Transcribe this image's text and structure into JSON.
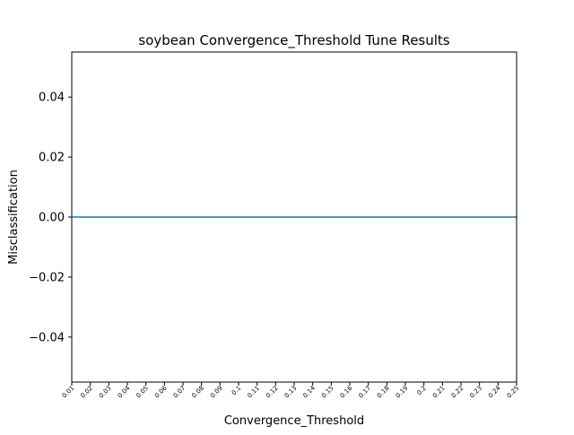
{
  "chart_data": {
    "type": "line",
    "title": "soybean Convergence_Threshold Tune Results",
    "xlabel": "Convergence_Threshold",
    "ylabel": "Misclassification",
    "x": [
      0.01,
      0.02,
      0.03,
      0.04,
      0.05,
      0.06,
      0.07,
      0.08,
      0.09,
      0.1,
      0.11,
      0.12,
      0.13,
      0.14,
      0.15,
      0.16,
      0.17,
      0.18,
      0.19,
      0.2,
      0.21,
      0.22,
      0.23,
      0.24,
      0.25
    ],
    "x_tick_labels": [
      "0.01",
      "0.02",
      "0.03",
      "0.04",
      "0.05",
      "0.06",
      "0.07",
      "0.08",
      "0.09",
      "0.1",
      "0.11",
      "0.12",
      "0.13",
      "0.14",
      "0.15",
      "0.16",
      "0.17",
      "0.18",
      "0.19",
      "0.2",
      "0.21",
      "0.22",
      "0.23",
      "0.24",
      "0.25"
    ],
    "series": [
      {
        "values": [
          0,
          0,
          0,
          0,
          0,
          0,
          0,
          0,
          0,
          0,
          0,
          0,
          0,
          0,
          0,
          0,
          0,
          0,
          0,
          0,
          0,
          0,
          0,
          0,
          0
        ],
        "color": "#1f77b4"
      }
    ],
    "y_ticks": [
      -0.04,
      -0.02,
      0.0,
      0.02,
      0.04
    ],
    "y_tick_labels": [
      "−0.04",
      "−0.02",
      "0.00",
      "0.02",
      "0.04"
    ],
    "xlim": [
      0.01,
      0.25
    ],
    "ylim": [
      -0.055,
      0.055
    ],
    "grid": false,
    "legend": "none"
  }
}
